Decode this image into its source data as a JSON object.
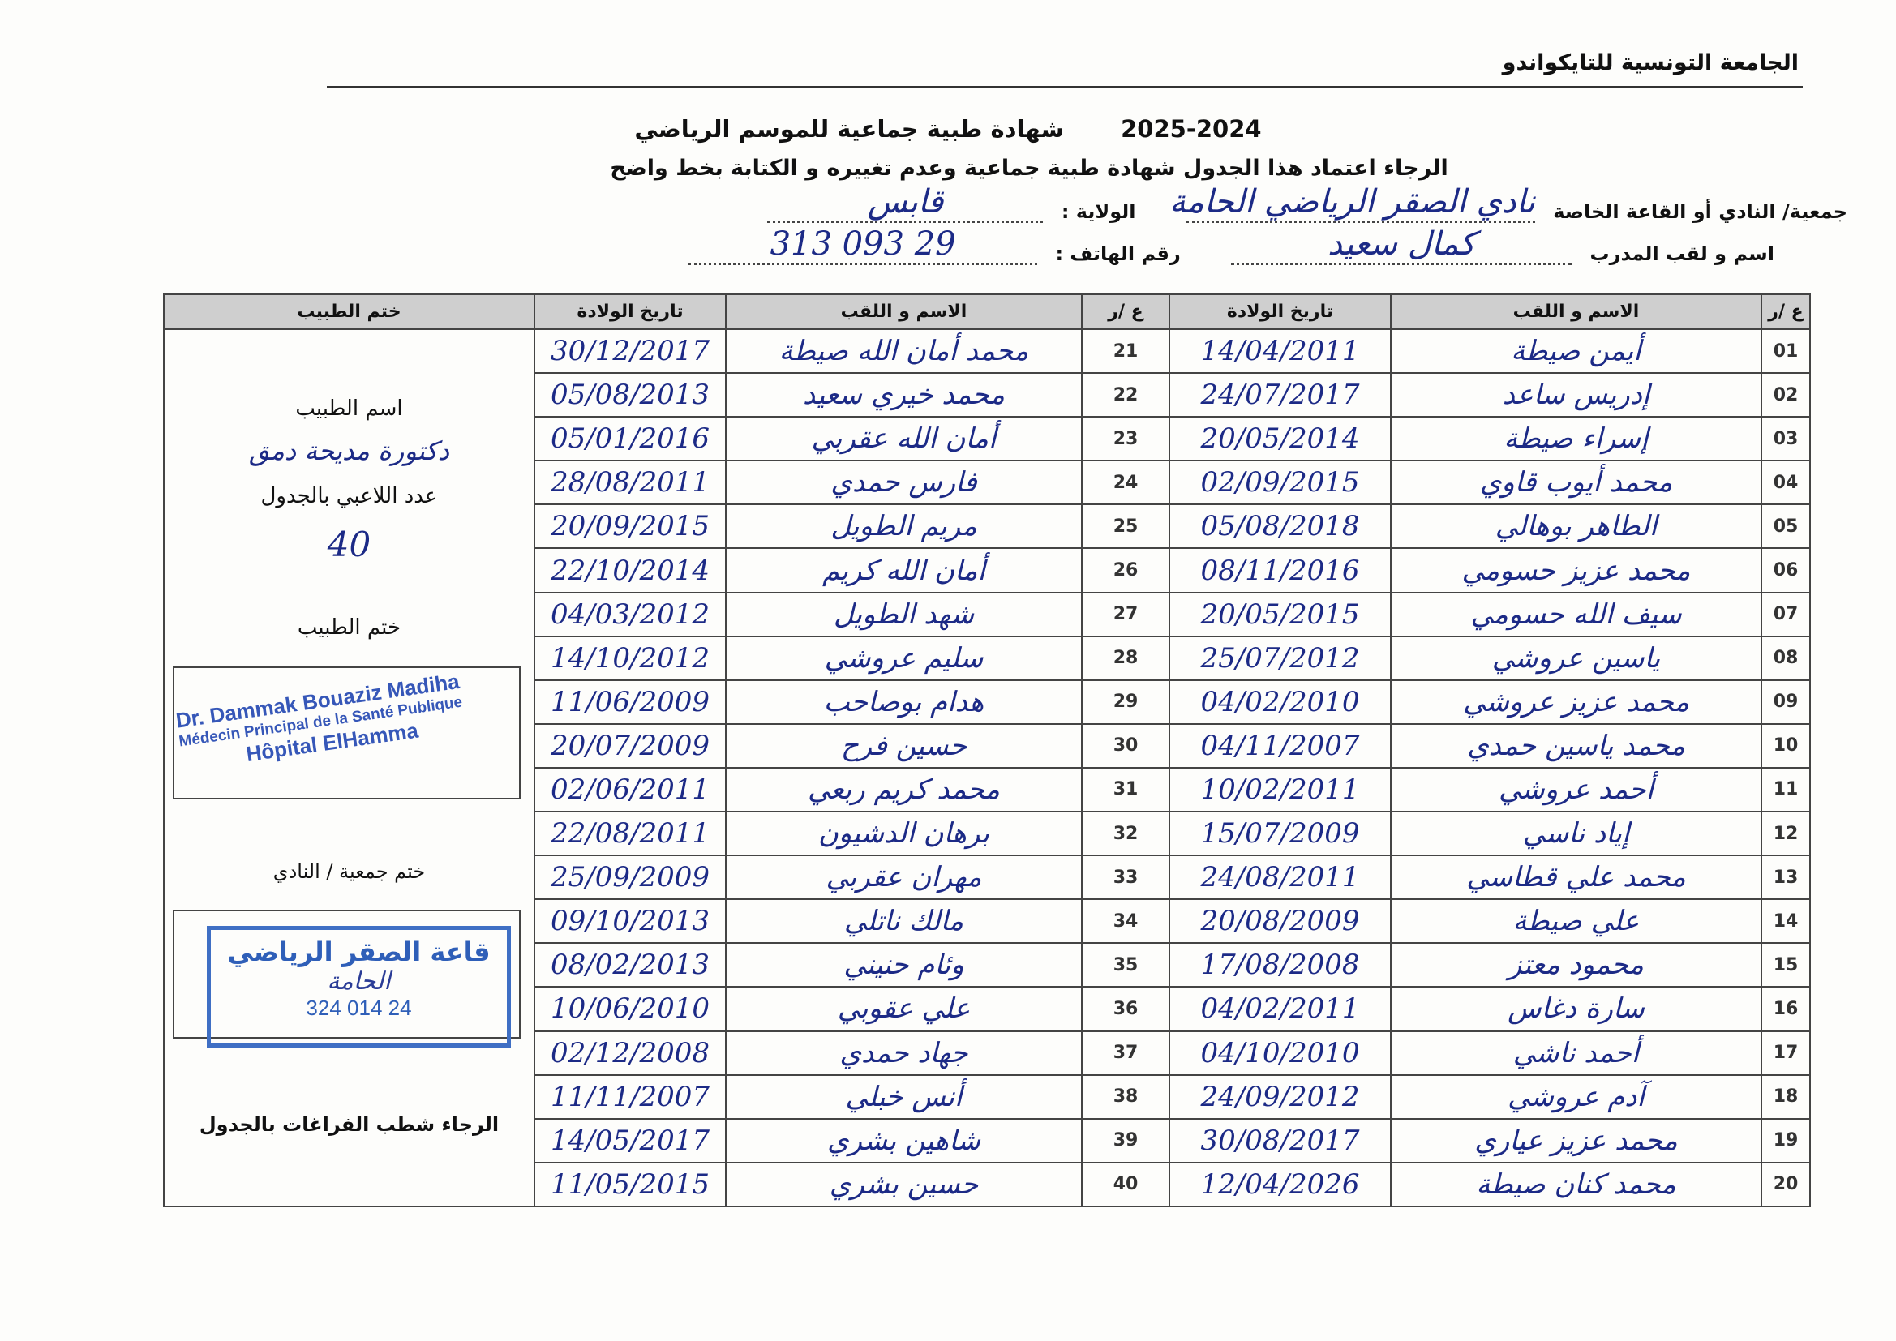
{
  "header": {
    "organization": "الجامعة التونسية للتايكواندو",
    "title": "شهادة طبية جماعية  للموسم الرياضي",
    "season": "2025-2024",
    "instruction": "الرجاء اعتماد هذا الجدول  شهادة طبية جماعية وعدم تغييره و الكتابة بخط واضح",
    "club_label": "جمعية/ النادي أو القاعة الخاصة",
    "club_value": "نادي الصقر الرياضي الحامة",
    "state_label": "الولاية :",
    "state_value": "قابس",
    "coach_label": "اسم و لقب المدرب",
    "coach_value": "كمال سعيد",
    "phone_label": "رقم الهاتف :",
    "phone_value": "29 093 313"
  },
  "table": {
    "columns": {
      "number": "ع /ر",
      "name": "الاسم و اللقب",
      "dob": "تاريخ الولادة",
      "doctor_stamp": "ختم الطبيب"
    },
    "right_rows": [
      {
        "n": "01",
        "name": "أيمن صيطة",
        "dob": "14/04/2011"
      },
      {
        "n": "02",
        "name": "إدريس ساعد",
        "dob": "24/07/2017"
      },
      {
        "n": "03",
        "name": "إسراء صيطة",
        "dob": "20/05/2014"
      },
      {
        "n": "04",
        "name": "محمد أيوب قاوي",
        "dob": "02/09/2015"
      },
      {
        "n": "05",
        "name": "الطاهر بوهالي",
        "dob": "05/08/2018"
      },
      {
        "n": "06",
        "name": "محمد عزيز حسومي",
        "dob": "08/11/2016"
      },
      {
        "n": "07",
        "name": "سيف الله حسومي",
        "dob": "20/05/2015"
      },
      {
        "n": "08",
        "name": "ياسين عروشي",
        "dob": "25/07/2012"
      },
      {
        "n": "09",
        "name": "محمد عزيز عروشي",
        "dob": "04/02/2010"
      },
      {
        "n": "10",
        "name": "محمد ياسين حمدي",
        "dob": "04/11/2007"
      },
      {
        "n": "11",
        "name": "أحمد عروشي",
        "dob": "10/02/2011"
      },
      {
        "n": "12",
        "name": "إياد ناسي",
        "dob": "15/07/2009"
      },
      {
        "n": "13",
        "name": "محمد علي قطاسي",
        "dob": "24/08/2011"
      },
      {
        "n": "14",
        "name": "علي صيطة",
        "dob": "20/08/2009"
      },
      {
        "n": "15",
        "name": "محمود معتز",
        "dob": "17/08/2008"
      },
      {
        "n": "16",
        "name": "سارة دغاس",
        "dob": "04/02/2011"
      },
      {
        "n": "17",
        "name": "أحمد ناشي",
        "dob": "04/10/2010"
      },
      {
        "n": "18",
        "name": "آدم عروشي",
        "dob": "24/09/2012"
      },
      {
        "n": "19",
        "name": "محمد عزيز عياري",
        "dob": "30/08/2017"
      },
      {
        "n": "20",
        "name": "محمد كنان صيطة",
        "dob": "12/04/2026"
      }
    ],
    "left_rows": [
      {
        "n": "21",
        "name": "محمد أمان الله صيطة",
        "dob": "30/12/2017"
      },
      {
        "n": "22",
        "name": "محمد خيري سعيد",
        "dob": "05/08/2013"
      },
      {
        "n": "23",
        "name": "أمان الله عقربي",
        "dob": "05/01/2016"
      },
      {
        "n": "24",
        "name": "فارس حمدي",
        "dob": "28/08/2011"
      },
      {
        "n": "25",
        "name": "مريم الطويل",
        "dob": "20/09/2015"
      },
      {
        "n": "26",
        "name": "أمان الله كريم",
        "dob": "22/10/2014"
      },
      {
        "n": "27",
        "name": "شهد الطويل",
        "dob": "04/03/2012"
      },
      {
        "n": "28",
        "name": "سليم عروشي",
        "dob": "14/10/2012"
      },
      {
        "n": "29",
        "name": "هدام بوصاحب",
        "dob": "11/06/2009"
      },
      {
        "n": "30",
        "name": "حسين فرح",
        "dob": "20/07/2009"
      },
      {
        "n": "31",
        "name": "محمد كريم ربعي",
        "dob": "02/06/2011"
      },
      {
        "n": "32",
        "name": "برهان الدشيون",
        "dob": "22/08/2011"
      },
      {
        "n": "33",
        "name": "مهران عقربي",
        "dob": "25/09/2009"
      },
      {
        "n": "34",
        "name": "مالك ناتلي",
        "dob": "09/10/2013"
      },
      {
        "n": "35",
        "name": "وئام حنيني",
        "dob": "08/02/2013"
      },
      {
        "n": "36",
        "name": "علي عقوبي",
        "dob": "10/06/2010"
      },
      {
        "n": "37",
        "name": "جهاد حمدي",
        "dob": "02/12/2008"
      },
      {
        "n": "38",
        "name": "أنس خبلي",
        "dob": "11/11/2007"
      },
      {
        "n": "39",
        "name": "شاهين بشري",
        "dob": "14/05/2017"
      },
      {
        "n": "40",
        "name": "حسين بشري",
        "dob": "11/05/2015"
      }
    ]
  },
  "doctor_panel": {
    "doctor_name_label": "اسم الطبيب",
    "doctor_name_value": "دكتورة مديحة دمق",
    "player_count_label": "عدد اللاعبي بالجدول",
    "player_count_value": "40",
    "doctor_stamp_label": "ختم الطبيب",
    "doctor_stamp_lines": [
      "Dr. Dammak Bouaziz Madiha",
      "Médecin Principal de la Santé Publique",
      "Hôpital ElHamma"
    ],
    "club_stamp_label": "ختم جمعية / النادي",
    "club_stamp_lines": [
      "قاعة الصقر الرياضي",
      "الحامة",
      "24 014 324"
    ],
    "footer_note": "الرجاء شطب  الفراغات بالجدول"
  },
  "colors": {
    "ink": "#1c2a86",
    "stamp": "#3657b8",
    "header_fill": "#cfcfcf"
  }
}
